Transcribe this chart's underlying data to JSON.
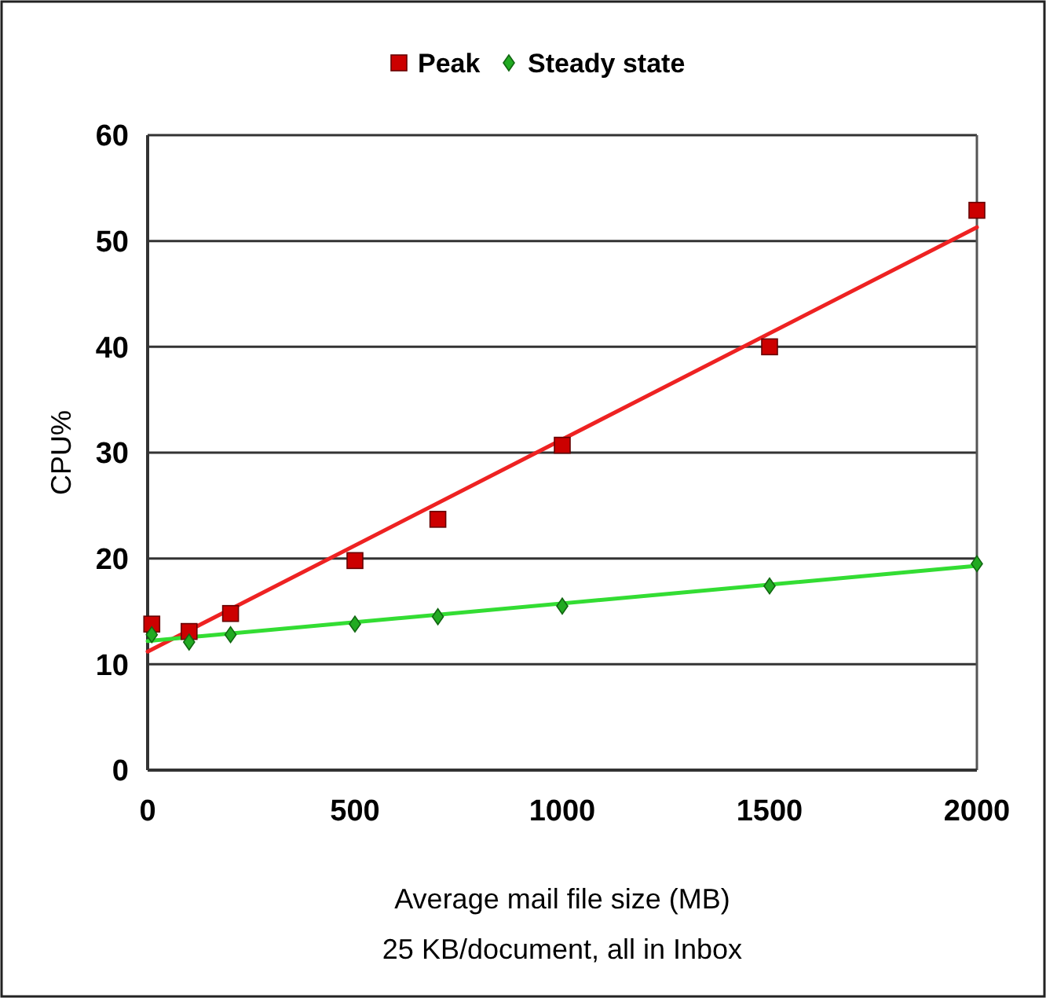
{
  "chart_data": {
    "type": "scatter",
    "xlabel": "Average mail file size (MB)",
    "ylabel": "CPU%",
    "annotations": [
      "25 KB/document, all in Inbox"
    ],
    "xlim": [
      0,
      2000
    ],
    "xticks": [
      0,
      500,
      1000,
      1500,
      2000
    ],
    "ylim": [
      0,
      60
    ],
    "yticks": [
      0,
      10,
      20,
      30,
      40,
      50,
      60
    ],
    "grid": "y",
    "legend": "top",
    "series": [
      {
        "name": "Peak",
        "color": "#cc0000",
        "marker": "square",
        "x": [
          10,
          100,
          200,
          500,
          700,
          1000,
          1500,
          2000
        ],
        "values": [
          13.8,
          13.1,
          14.8,
          19.8,
          23.7,
          30.7,
          40.0,
          52.9
        ]
      },
      {
        "name": "Steady state",
        "color": "#22aa22",
        "marker": "diamond",
        "x": [
          10,
          100,
          200,
          500,
          700,
          1000,
          1500,
          2000
        ],
        "values": [
          12.8,
          12.1,
          12.8,
          13.8,
          14.5,
          15.5,
          17.4,
          19.5
        ]
      },
      {
        "type": "line",
        "color": "#ee2222",
        "x": [
          0,
          2000
        ],
        "values": [
          11.2,
          51.3
        ]
      },
      {
        "type": "line",
        "color": "#33dd33",
        "x": [
          0,
          2000
        ],
        "values": [
          12.2,
          19.3
        ]
      }
    ]
  }
}
